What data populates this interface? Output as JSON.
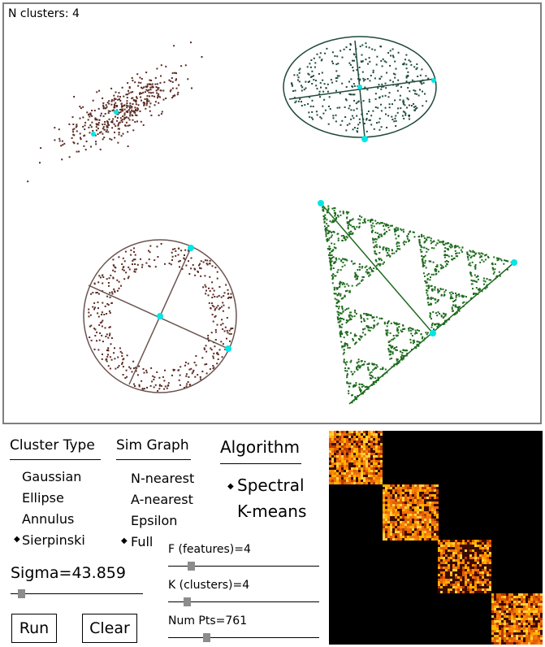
{
  "canvas": {
    "n_clusters_label": "N clusters: 4"
  },
  "cluster_type": {
    "title": "Cluster Type",
    "options": [
      "Gaussian",
      "Ellipse",
      "Annulus",
      "Sierpinski"
    ],
    "selected": "Sierpinski"
  },
  "sim_graph": {
    "title": "Sim Graph",
    "options": [
      "N-nearest",
      "A-nearest",
      "Epsilon",
      "Full"
    ],
    "selected": "Full"
  },
  "algorithm": {
    "title": "Algorithm",
    "options": [
      "Spectral",
      "K-means"
    ],
    "selected": "Spectral"
  },
  "sigma": {
    "label": "Sigma=43.859",
    "value": 43.859
  },
  "features": {
    "label": "F (features)=4",
    "value": 4
  },
  "clusters": {
    "label": "K (clusters)=4",
    "value": 4
  },
  "num_pts": {
    "label": "Num Pts=761",
    "value": 761
  },
  "buttons": {
    "run": "Run",
    "clear": "Clear"
  },
  "colors": {
    "gaussian": "#5a2a22",
    "ellipse": "#1f4a3c",
    "annulus": "#5a2a22",
    "sierpinski": "#1e6b1e",
    "centroid": "#00e5e5",
    "frame": "#7f7f7f",
    "slider_thumb": "#8c8c8c"
  }
}
